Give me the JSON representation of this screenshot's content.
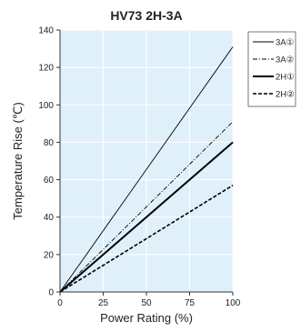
{
  "chart_data": {
    "type": "line",
    "title": "HV73 2H-3A",
    "xlabel": "Power Rating (%)",
    "ylabel": "Temperature Rise (℃)",
    "xlim": [
      0,
      100
    ],
    "ylim": [
      0,
      140
    ],
    "x_ticks": [
      "0",
      "25",
      "50",
      "75",
      "100"
    ],
    "y_ticks": [
      "0",
      "20",
      "40",
      "60",
      "80",
      "100",
      "120",
      "140"
    ],
    "grid": true,
    "legend_position": "top-right, outside plot",
    "colors": {
      "plot_background": "#dff0fa",
      "grid": "#ffffff",
      "line": "#000000"
    },
    "series": [
      {
        "name": "3A①",
        "style": "solid-thin",
        "x": [
          0,
          100
        ],
        "y": [
          0,
          131
        ]
      },
      {
        "name": "3A②",
        "style": "dash-dot-thin",
        "x": [
          0,
          100
        ],
        "y": [
          0,
          91
        ]
      },
      {
        "name": "2H①",
        "style": "solid-thick",
        "x": [
          0,
          100
        ],
        "y": [
          0,
          80
        ]
      },
      {
        "name": "2H②",
        "style": "dashed",
        "x": [
          0,
          100
        ],
        "y": [
          0,
          57
        ]
      }
    ]
  }
}
